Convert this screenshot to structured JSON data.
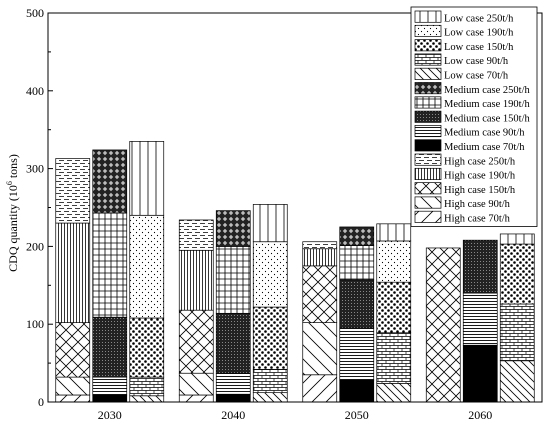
{
  "chart_data": {
    "type": "bar",
    "stacked": true,
    "ylabel": "CDQ quantity (10^6 tons)",
    "ylabel_base": "CDQ quantity (10",
    "ylabel_sup": "6",
    "ylabel_tail": " tons)",
    "xlabel": "",
    "ylim": [
      0,
      500
    ],
    "yticks": [
      "0",
      "100",
      "200",
      "300",
      "400",
      "500"
    ],
    "categories": [
      "2030",
      "2040",
      "2050",
      "2060"
    ],
    "groups": [
      "High case",
      "Medium case",
      "Low case"
    ],
    "legend_position": "top-right",
    "series": [
      {
        "name": "High case 70t/h",
        "group": "High case",
        "pattern": "diag-fwd-wide",
        "values": [
          9,
          9,
          35,
          0
        ]
      },
      {
        "name": "High case 90t/h",
        "group": "High case",
        "pattern": "diag-back-wide",
        "values": [
          23,
          28,
          67,
          0
        ]
      },
      {
        "name": "High case 150t/h",
        "group": "High case",
        "pattern": "cross-diag",
        "values": [
          70,
          81,
          73,
          198
        ]
      },
      {
        "name": "High case 190t/h",
        "group": "High case",
        "pattern": "vertical-dense",
        "values": [
          128,
          77,
          22,
          0
        ]
      },
      {
        "name": "High case 250t/h",
        "group": "High case",
        "pattern": "horizontal-dashed",
        "values": [
          83,
          39,
          9,
          0
        ]
      },
      {
        "name": "Medium case 70t/h",
        "group": "Medium case",
        "pattern": "solid-black",
        "values": [
          9,
          10,
          28,
          73
        ]
      },
      {
        "name": "Medium case 90t/h",
        "group": "Medium case",
        "pattern": "horizontal-dense",
        "values": [
          23,
          27,
          67,
          67
        ]
      },
      {
        "name": "Medium case 150t/h",
        "group": "Medium case",
        "pattern": "dark-check",
        "values": [
          77,
          77,
          62,
          68
        ]
      },
      {
        "name": "Medium case 190t/h",
        "group": "Medium case",
        "pattern": "grid",
        "values": [
          134,
          86,
          44,
          0
        ]
      },
      {
        "name": "Medium case 250t/h",
        "group": "Medium case",
        "pattern": "dark-diamond",
        "values": [
          81,
          46,
          24,
          0
        ]
      },
      {
        "name": "Low case 70t/h",
        "group": "Low case",
        "pattern": "diag-back",
        "values": [
          8,
          12,
          24,
          53
        ]
      },
      {
        "name": "Low case 90t/h",
        "group": "Low case",
        "pattern": "brick",
        "values": [
          24,
          30,
          65,
          73
        ]
      },
      {
        "name": "Low case 150t/h",
        "group": "Low case",
        "pattern": "dots-large",
        "values": [
          76,
          80,
          65,
          77
        ]
      },
      {
        "name": "Low case 190t/h",
        "group": "Low case",
        "pattern": "dots-small",
        "values": [
          132,
          84,
          53,
          0
        ]
      },
      {
        "name": "Low case 250t/h",
        "group": "Low case",
        "pattern": "vertical-sparse",
        "values": [
          95,
          48,
          22,
          13
        ]
      }
    ]
  }
}
